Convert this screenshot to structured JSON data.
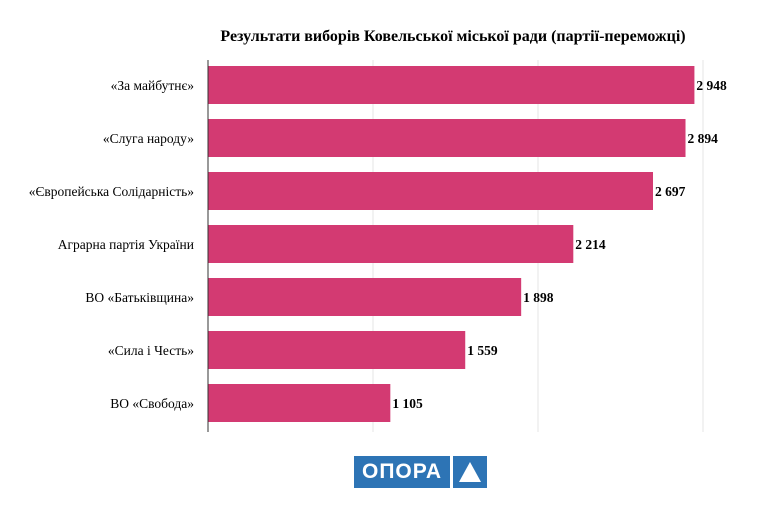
{
  "chart_data": {
    "type": "bar",
    "orientation": "horizontal",
    "title": "Результати виборів Ковельської міської ради (партії-переможці)",
    "categories": [
      "«За майбутнє»",
      "«Слуга народу»",
      "«Європейська Солідарність»",
      "Аграрна партія України",
      "ВО «Батьківщина»",
      "«Сила і Честь»",
      "ВО «Свобода»"
    ],
    "values": [
      2948,
      2894,
      2697,
      2214,
      1898,
      1559,
      1105
    ],
    "value_labels": [
      "2 948",
      "2 894",
      "2 697",
      "2 214",
      "1 898",
      "1 559",
      "1 105"
    ],
    "xlim": [
      0,
      3000
    ],
    "grid": true,
    "bar_color": "#d33a72"
  },
  "logo": {
    "text": "ОПОРА",
    "color": "#2d74b5"
  }
}
